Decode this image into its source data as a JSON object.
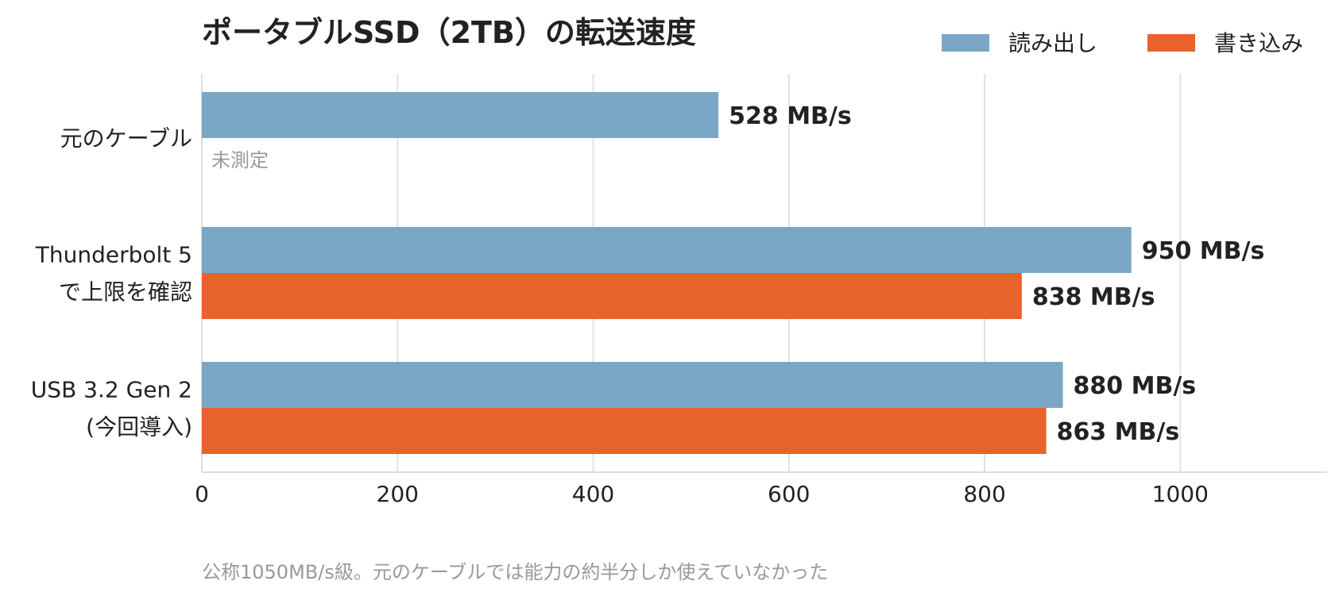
{
  "chart_data": {
    "type": "bar",
    "orientation": "horizontal",
    "title": "ポータブルSSD（2TB）の転送速度",
    "categories": [
      [
        "元のケーブル"
      ],
      [
        "Thunderbolt 5",
        "で上限を確認"
      ],
      [
        "USB 3.2 Gen 2",
        "(今回導入)"
      ]
    ],
    "series": [
      {
        "name": "読み出し",
        "color": "#7ba7c7",
        "values": [
          528,
          950,
          880
        ],
        "labels": [
          "528 MB/s",
          "950 MB/s",
          "880 MB/s"
        ]
      },
      {
        "name": "書き込み",
        "color": "#e8632c",
        "values": [
          null,
          838,
          863
        ],
        "labels": [
          null,
          "838 MB/s",
          "863 MB/s"
        ]
      }
    ],
    "missing_label": "未測定",
    "xlim": [
      0,
      1150
    ],
    "xticks": [
      0,
      200,
      400,
      600,
      800,
      1000
    ],
    "xtick_labels": [
      "0",
      "200",
      "400",
      "600",
      "800",
      "1000"
    ],
    "xlabel": "",
    "ylabel": "",
    "grid": "vertical",
    "legend_position": "top-right",
    "footnote": "公称1050MB/s級。元のケーブルでは能力の約半分しか使えていなかった"
  }
}
